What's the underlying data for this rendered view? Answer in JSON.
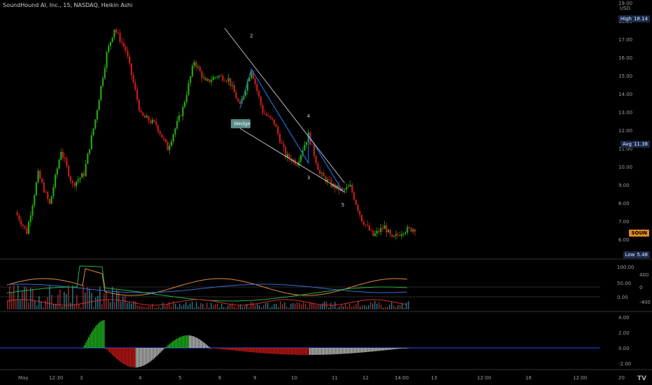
{
  "header": {
    "title": "SoundHound AI, Inc., 15, NASDAQ, Heikin Ashi"
  },
  "colors": {
    "bg": "#000000",
    "up": "#26a614",
    "down": "#c41e1e",
    "wedge": "#c8d0d8",
    "zigzag": "#1e6bd6",
    "grid": "#1a1a1a",
    "axis_text": "#9a9a9a"
  },
  "price_axis": {
    "ticks": [
      "19.00",
      "18.00",
      "17.00",
      "16.00",
      "15.00",
      "14.00",
      "13.00",
      "12.00",
      "11.00",
      "10.00",
      "9.00",
      "8.00",
      "7.00",
      "6.00"
    ],
    "currency": "USD"
  },
  "badges": {
    "high": {
      "label": "High",
      "value": "18.14"
    },
    "avg": {
      "label": "Avg",
      "value": "11.38"
    },
    "last": {
      "value": "SOUN"
    },
    "low": {
      "label": "Low",
      "value": "5.48"
    }
  },
  "pattern": {
    "label": "Wedge",
    "points": [
      {
        "label": "2",
        "price": 15.35
      },
      {
        "label": "3",
        "price": 10.2
      },
      {
        "label": "4",
        "price": 11.75
      },
      {
        "label": "5",
        "price": 8.65
      }
    ]
  },
  "osc_axis": {
    "left_ticks": [
      "100.00",
      "50.00",
      "0.00"
    ],
    "right_ticks": [
      "400",
      "0",
      "-400"
    ]
  },
  "macd_axis": {
    "ticks": [
      "4.00",
      "2.00",
      "0.00",
      "-2.00"
    ]
  },
  "time_axis": {
    "labels": [
      "May",
      "12:30",
      "3",
      "4",
      "5",
      "6",
      "9",
      "10",
      "11",
      "12",
      "14:00",
      "13",
      "12:00",
      "16",
      "12:00",
      "20"
    ]
  },
  "chart_data": {
    "type": "candlestick",
    "title": "SoundHound AI, Inc., 15, NASDAQ, Heikin Ashi",
    "interval": "15",
    "exchange": "NASDAQ",
    "ylim": [
      5.0,
      19.0
    ],
    "high": 18.14,
    "avg": 11.38,
    "low": 5.48,
    "close_path": [
      {
        "x": 0,
        "y": 7.5
      },
      {
        "x": 6,
        "y": 6.4
      },
      {
        "x": 12,
        "y": 9.6
      },
      {
        "x": 18,
        "y": 7.9
      },
      {
        "x": 24,
        "y": 10.9
      },
      {
        "x": 30,
        "y": 9.0
      },
      {
        "x": 36,
        "y": 9.6
      },
      {
        "x": 42,
        "y": 12.6
      },
      {
        "x": 48,
        "y": 16.2
      },
      {
        "x": 52,
        "y": 17.6
      },
      {
        "x": 58,
        "y": 16.4
      },
      {
        "x": 66,
        "y": 12.8
      },
      {
        "x": 74,
        "y": 12.3
      },
      {
        "x": 80,
        "y": 11.0
      },
      {
        "x": 88,
        "y": 13.2
      },
      {
        "x": 94,
        "y": 15.8
      },
      {
        "x": 100,
        "y": 14.6
      },
      {
        "x": 106,
        "y": 15.0
      },
      {
        "x": 112,
        "y": 14.8
      },
      {
        "x": 118,
        "y": 13.3
      },
      {
        "x": 124,
        "y": 15.35
      },
      {
        "x": 130,
        "y": 13.0
      },
      {
        "x": 136,
        "y": 12.4
      },
      {
        "x": 142,
        "y": 10.6
      },
      {
        "x": 148,
        "y": 10.2
      },
      {
        "x": 154,
        "y": 11.75
      },
      {
        "x": 160,
        "y": 9.6
      },
      {
        "x": 166,
        "y": 9.0
      },
      {
        "x": 172,
        "y": 8.65
      },
      {
        "x": 176,
        "y": 8.9
      },
      {
        "x": 182,
        "y": 7.1
      },
      {
        "x": 188,
        "y": 6.2
      },
      {
        "x": 194,
        "y": 6.7
      },
      {
        "x": 198,
        "y": 6.0
      },
      {
        "x": 204,
        "y": 6.5
      },
      {
        "x": 210,
        "y": 6.6
      }
    ]
  }
}
